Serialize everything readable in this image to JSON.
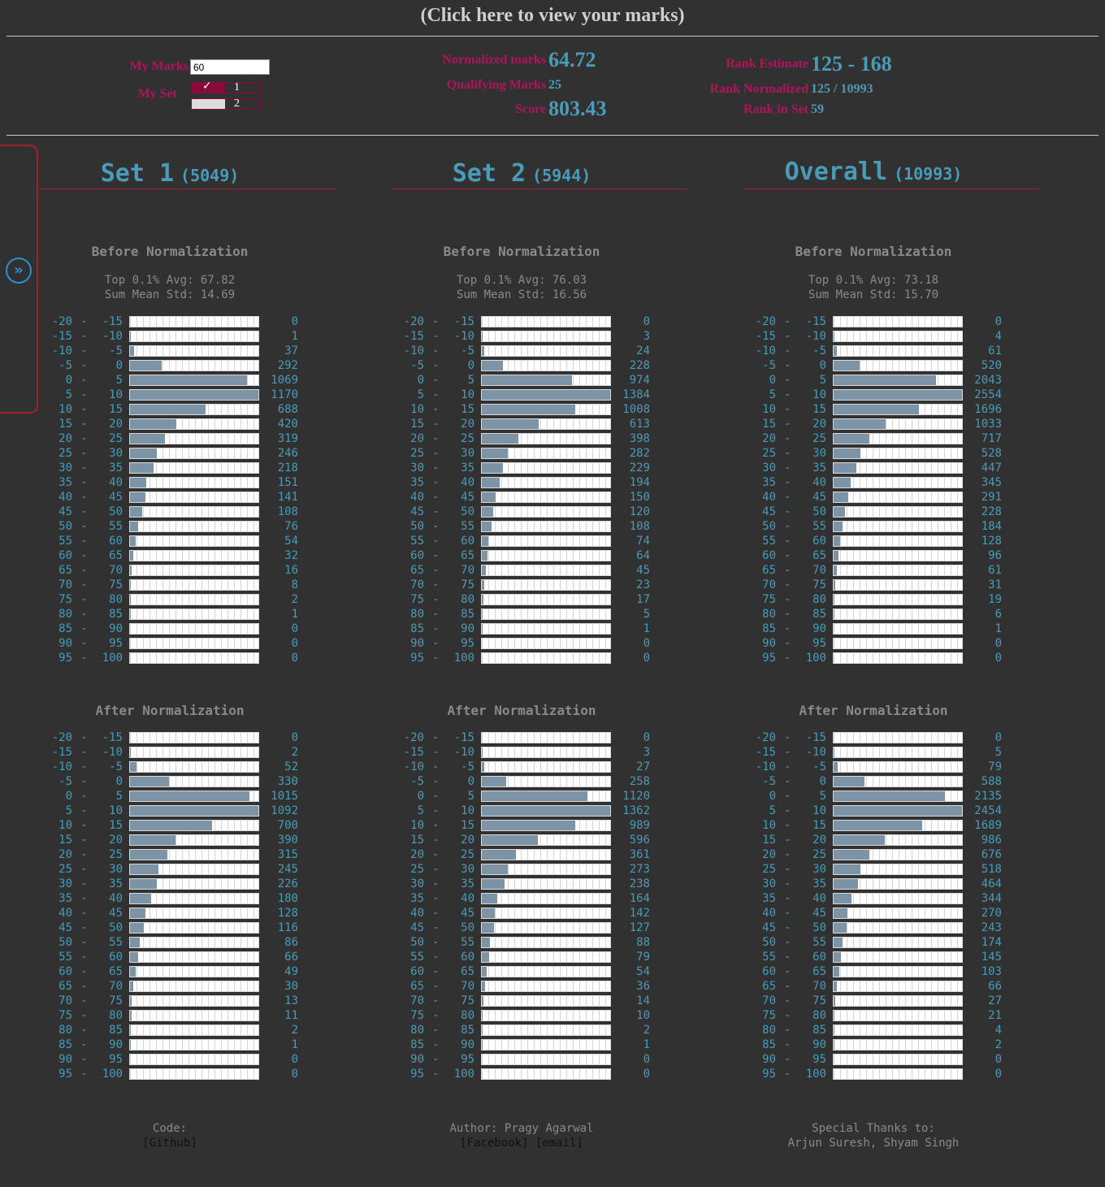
{
  "header": {
    "link_text": "(Click here to view your marks)"
  },
  "form": {
    "my_marks_label": "My Marks",
    "my_marks_value": "60",
    "my_set_label": "My Set",
    "set_options": [
      {
        "label": "1",
        "selected": true
      },
      {
        "label": "2",
        "selected": false
      }
    ]
  },
  "results": {
    "normalized_marks_label": "Normalized marks",
    "normalized_marks": "64.72",
    "qualifying_marks_label": "Qualifying Marks",
    "qualifying_marks": "25",
    "score_label": "Score",
    "score": "803.43",
    "rank_estimate_label": "Rank Estimate",
    "rank_estimate": "125 - 168",
    "rank_normalized_label": "Rank Normalized",
    "rank_normalized": "125 / 10993",
    "rank_in_set_label": "Rank in Set",
    "rank_in_set": "59"
  },
  "colors": {
    "accent": "#4a9bb8",
    "label": "#b0145a",
    "bar": "#7d93a6",
    "rule": "#a5202e",
    "background": "#313131"
  },
  "side_panel": {
    "icon": "double-chevron-right-icon"
  },
  "ranges": [
    [
      "-20",
      "-15"
    ],
    [
      "-15",
      "-10"
    ],
    [
      "-10",
      "-5"
    ],
    [
      "-5",
      "0"
    ],
    [
      "0",
      "5"
    ],
    [
      "5",
      "10"
    ],
    [
      "10",
      "15"
    ],
    [
      "15",
      "20"
    ],
    [
      "20",
      "25"
    ],
    [
      "25",
      "30"
    ],
    [
      "30",
      "35"
    ],
    [
      "35",
      "40"
    ],
    [
      "40",
      "45"
    ],
    [
      "45",
      "50"
    ],
    [
      "50",
      "55"
    ],
    [
      "55",
      "60"
    ],
    [
      "60",
      "65"
    ],
    [
      "65",
      "70"
    ],
    [
      "70",
      "75"
    ],
    [
      "75",
      "80"
    ],
    [
      "80",
      "85"
    ],
    [
      "85",
      "90"
    ],
    [
      "90",
      "95"
    ],
    [
      "95",
      "100"
    ]
  ],
  "columns": [
    {
      "title": "Set 1",
      "count": "(5049)",
      "before": {
        "title": "Before Normalization",
        "stat1": "Top 0.1% Avg: 67.82",
        "stat2": "Sum Mean Std: 14.69",
        "counts": [
          0,
          1,
          37,
          292,
          1069,
          1170,
          688,
          420,
          319,
          246,
          218,
          151,
          141,
          108,
          76,
          54,
          32,
          16,
          8,
          2,
          1,
          0,
          0,
          0
        ]
      },
      "after": {
        "title": "After Normalization",
        "counts": [
          0,
          2,
          52,
          330,
          1015,
          1092,
          700,
          390,
          315,
          245,
          226,
          180,
          128,
          116,
          86,
          66,
          49,
          30,
          13,
          11,
          2,
          1,
          0,
          0
        ]
      },
      "footer": {
        "line1": "Code:",
        "links": [
          "[Github]"
        ]
      }
    },
    {
      "title": "Set 2",
      "count": "(5944)",
      "before": {
        "title": "Before Normalization",
        "stat1": "Top 0.1% Avg: 76.03",
        "stat2": "Sum Mean Std: 16.56",
        "counts": [
          0,
          3,
          24,
          228,
          974,
          1384,
          1008,
          613,
          398,
          282,
          229,
          194,
          150,
          120,
          108,
          74,
          64,
          45,
          23,
          17,
          5,
          1,
          0,
          0
        ]
      },
      "after": {
        "title": "After Normalization",
        "counts": [
          0,
          3,
          27,
          258,
          1120,
          1362,
          989,
          596,
          361,
          273,
          238,
          164,
          142,
          127,
          88,
          79,
          54,
          36,
          14,
          10,
          2,
          1,
          0,
          0
        ]
      },
      "footer": {
        "line1": "Author: Pragy Agarwal",
        "links": [
          "[Facebook]",
          "[email]"
        ]
      }
    },
    {
      "title": "Overall",
      "count": "(10993)",
      "before": {
        "title": "Before Normalization",
        "stat1": "Top 0.1% Avg: 73.18",
        "stat2": "Sum Mean Std: 15.70",
        "counts": [
          0,
          4,
          61,
          520,
          2043,
          2554,
          1696,
          1033,
          717,
          528,
          447,
          345,
          291,
          228,
          184,
          128,
          96,
          61,
          31,
          19,
          6,
          1,
          0,
          0
        ]
      },
      "after": {
        "title": "After Normalization",
        "counts": [
          0,
          5,
          79,
          588,
          2135,
          2454,
          1689,
          986,
          676,
          518,
          464,
          344,
          270,
          243,
          174,
          145,
          103,
          66,
          27,
          21,
          4,
          2,
          0,
          0
        ]
      },
      "footer": {
        "line1": "Special Thanks to:",
        "line2": "Arjun Suresh, Shyam Singh",
        "links": []
      }
    }
  ]
}
